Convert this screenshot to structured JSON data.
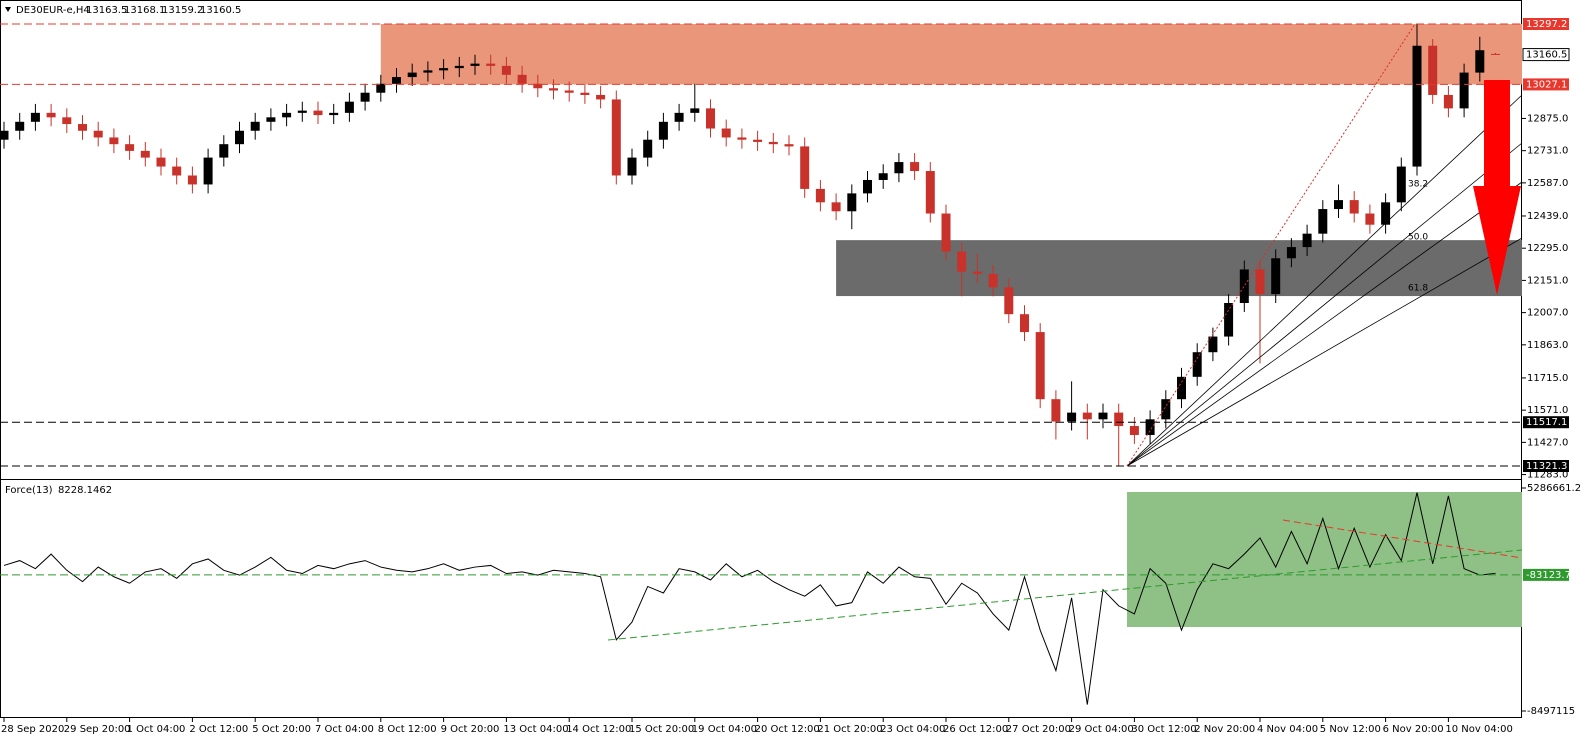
{
  "chart_data": [
    {
      "type": "candlestick",
      "title": "DE30EUR-e,H4",
      "categories": [
        "28 Sep 2020",
        null,
        null,
        null,
        "29 Sep 20:00",
        null,
        null,
        null,
        "1 Oct 04:00",
        null,
        null,
        null,
        "2 Oct 12:00",
        null,
        null,
        null,
        "5 Oct 20:00",
        null,
        null,
        null,
        "7 Oct 04:00",
        null,
        null,
        null,
        "8 Oct 12:00",
        null,
        null,
        null,
        "9 Oct 20:00",
        null,
        null,
        null,
        "13 Oct 04:00",
        null,
        null,
        null,
        "14 Oct 12:00",
        null,
        null,
        null,
        "15 Oct 20:00",
        null,
        null,
        null,
        "19 Oct 04:00",
        null,
        null,
        null,
        "20 Oct 12:00",
        null,
        null,
        null,
        "21 Oct 20:00",
        null,
        null,
        null,
        "23 Oct 04:00",
        null,
        null,
        null,
        "26 Oct 12:00",
        null,
        null,
        null,
        "27 Oct 20:00",
        null,
        null,
        null,
        "29 Oct 04:00",
        null,
        null,
        null,
        "30 Oct 12:00",
        null,
        null,
        null,
        "2 Nov 20:00",
        null,
        null,
        null,
        "4 Nov 04:00",
        null,
        null,
        null,
        "5 Nov 12:00",
        null,
        null,
        null,
        "6 Nov 20:00",
        null,
        null,
        null,
        "10 Nov 04:00",
        null,
        null,
        null
      ],
      "open": [
        12780,
        12820,
        12860,
        12900,
        12880,
        12850,
        12820,
        12790,
        12760,
        12730,
        12700,
        12660,
        12620,
        12580,
        12700,
        12760,
        12820,
        12860,
        12880,
        12900,
        12910,
        12890,
        12900,
        12950,
        12990,
        13030,
        13060,
        13080,
        13090,
        13100,
        13110,
        13120,
        13110,
        13070,
        13030,
        13010,
        13000,
        12990,
        12980,
        12960,
        12620,
        12700,
        12780,
        12860,
        12900,
        12920,
        12830,
        12790,
        12780,
        12770,
        12760,
        12750,
        12560,
        12500,
        12460,
        12540,
        12600,
        12630,
        12680,
        12640,
        12450,
        12280,
        12190,
        12180,
        12120,
        12000,
        11920,
        11620,
        11520,
        11560,
        11530,
        11560,
        11500,
        11460,
        11530,
        11620,
        11720,
        11830,
        11900,
        12050,
        12200,
        12090,
        12250,
        12300,
        12360,
        12470,
        12510,
        12450,
        12400,
        12500,
        12660,
        13200,
        12980,
        12920,
        13080,
        13163.5
      ],
      "high": [
        12860,
        12900,
        12940,
        12940,
        12920,
        12890,
        12860,
        12830,
        12800,
        12770,
        12740,
        12700,
        12660,
        12740,
        12800,
        12860,
        12900,
        12920,
        12940,
        12950,
        12950,
        12940,
        12990,
        13030,
        13070,
        13100,
        13120,
        13130,
        13140,
        13150,
        13160,
        13160,
        13150,
        13110,
        13070,
        13050,
        13040,
        13030,
        13020,
        13000,
        12740,
        12820,
        12900,
        12940,
        13030,
        12960,
        12870,
        12830,
        12820,
        12810,
        12800,
        12790,
        12600,
        12540,
        12580,
        12640,
        12670,
        12720,
        12720,
        12680,
        12490,
        12320,
        12270,
        12220,
        12160,
        12040,
        11960,
        11660,
        11700,
        11600,
        11600,
        11600,
        11540,
        11570,
        11660,
        11760,
        11870,
        11940,
        12090,
        12240,
        12240,
        12290,
        12340,
        12400,
        12510,
        12580,
        12550,
        12490,
        12540,
        12700,
        13297.2,
        13230,
        13020,
        13120,
        13240,
        13168.1
      ],
      "low": [
        12740,
        12780,
        12820,
        12840,
        12810,
        12780,
        12750,
        12720,
        12690,
        12660,
        12620,
        12580,
        12540,
        12540,
        12660,
        12720,
        12780,
        12820,
        12840,
        12860,
        12850,
        12850,
        12860,
        12910,
        12950,
        12990,
        13020,
        13040,
        13050,
        13060,
        13070,
        13070,
        13030,
        12990,
        12970,
        12960,
        12950,
        12940,
        12920,
        12580,
        12580,
        12660,
        12740,
        12820,
        12860,
        12790,
        12750,
        12740,
        12730,
        12720,
        12710,
        12520,
        12460,
        12420,
        12380,
        12500,
        12560,
        12590,
        12600,
        12410,
        12240,
        12080,
        12140,
        12080,
        11960,
        11880,
        11580,
        11440,
        11480,
        11440,
        11490,
        11321.3,
        11420,
        11420,
        11490,
        11580,
        11680,
        11790,
        11860,
        12010,
        11780,
        12050,
        12210,
        12260,
        12320,
        12430,
        12410,
        12360,
        12360,
        12460,
        12620,
        12940,
        12880,
        12880,
        13040,
        13159.2
      ],
      "close": [
        12820,
        12860,
        12900,
        12880,
        12850,
        12820,
        12790,
        12760,
        12730,
        12700,
        12660,
        12620,
        12580,
        12700,
        12760,
        12820,
        12860,
        12880,
        12900,
        12910,
        12890,
        12900,
        12950,
        12990,
        13030,
        13060,
        13080,
        13090,
        13100,
        13110,
        13120,
        13110,
        13070,
        13030,
        13010,
        13000,
        12990,
        12980,
        12960,
        12620,
        12700,
        12780,
        12860,
        12900,
        12920,
        12830,
        12790,
        12780,
        12770,
        12760,
        12750,
        12560,
        12500,
        12460,
        12540,
        12600,
        12630,
        12680,
        12640,
        12450,
        12280,
        12190,
        12180,
        12120,
        12000,
        11920,
        11620,
        11520,
        11560,
        11530,
        11560,
        11500,
        11460,
        11530,
        11620,
        11720,
        11830,
        11900,
        12050,
        12200,
        12090,
        12250,
        12300,
        12360,
        12470,
        12510,
        12450,
        12400,
        12500,
        12660,
        13200,
        12980,
        12920,
        13080,
        13180,
        13160.5
      ],
      "up_color": "#000000",
      "down_color": "#c8322a",
      "ylim": [
        11267.7,
        13404.5
      ],
      "yticks": [
        {
          "value": 12875.0,
          "label": "12875.0"
        },
        {
          "value": 12731.0,
          "label": "12731.0"
        },
        {
          "value": 12587.0,
          "label": "12587.0"
        },
        {
          "value": 12439.0,
          "label": "12439.0"
        },
        {
          "value": 12295.0,
          "label": "12295.0"
        },
        {
          "value": 12151.0,
          "label": "12151.0"
        },
        {
          "value": 12007.0,
          "label": "12007.0"
        },
        {
          "value": 11863.0,
          "label": "11863.0"
        },
        {
          "value": 11715.0,
          "label": "11715.0"
        },
        {
          "value": 11571.0,
          "label": "11571.0"
        },
        {
          "value": 11427.0,
          "label": "11427.0"
        },
        {
          "value": 11283.0,
          "label": "11283.0"
        }
      ],
      "levels": [
        {
          "value": 13297.2,
          "color": "#e8382d"
        },
        {
          "value": 13027.1,
          "color": "#e8382d"
        },
        {
          "value": 11517.1,
          "color": "#000000"
        },
        {
          "value": 11321.3,
          "color": "#000000"
        }
      ],
      "zones": [
        {
          "from": 13027.1,
          "to": 13297.2,
          "start": 24,
          "color": "#e9967a"
        },
        {
          "from": 12081,
          "to": 12331,
          "start": 53,
          "color": "#6b6b6b"
        }
      ],
      "annotations": [
        "38.2",
        "50.0",
        "61.8"
      ]
    },
    {
      "type": "line",
      "title": "Force(13)",
      "color": "#000000",
      "values": [
        500000,
        800000,
        300000,
        1200000,
        200000,
        -500000,
        400000,
        -200000,
        -600000,
        100000,
        300000,
        -300000,
        600000,
        900000,
        200000,
        -100000,
        400000,
        1000000,
        200000,
        0,
        500000,
        300000,
        600000,
        800000,
        400000,
        200000,
        100000,
        300000,
        600000,
        200000,
        400000,
        500000,
        0,
        100000,
        -100000,
        200000,
        100000,
        0,
        -200000,
        -4100000,
        -3000000,
        -800000,
        -1200000,
        300000,
        100000,
        -400000,
        600000,
        -200000,
        200000,
        -500000,
        -1000000,
        -1400000,
        -700000,
        -2000000,
        -1800000,
        100000,
        -600000,
        400000,
        -200000,
        -300000,
        -1900000,
        -600000,
        -1200000,
        -2500000,
        -3500000,
        -200000,
        -3500000,
        -6000000,
        -1500000,
        -8100000,
        -1000000,
        -2000000,
        -2500000,
        300000,
        -600000,
        -3500000,
        -1000000,
        600000,
        300000,
        1200000,
        2200000,
        400000,
        2600000,
        600000,
        3400000,
        300000,
        2800000,
        400000,
        2400000,
        800000,
        5000000,
        600000,
        4800000,
        300000,
        -100000,
        8228.1462
      ],
      "ylim": [
        -8929799,
        5657533
      ],
      "yticks": [
        5286661.2,
        -8497115
      ],
      "levels": [
        {
          "value": -83123.76,
          "color": "#2e9a2e"
        }
      ]
    }
  ]
}
